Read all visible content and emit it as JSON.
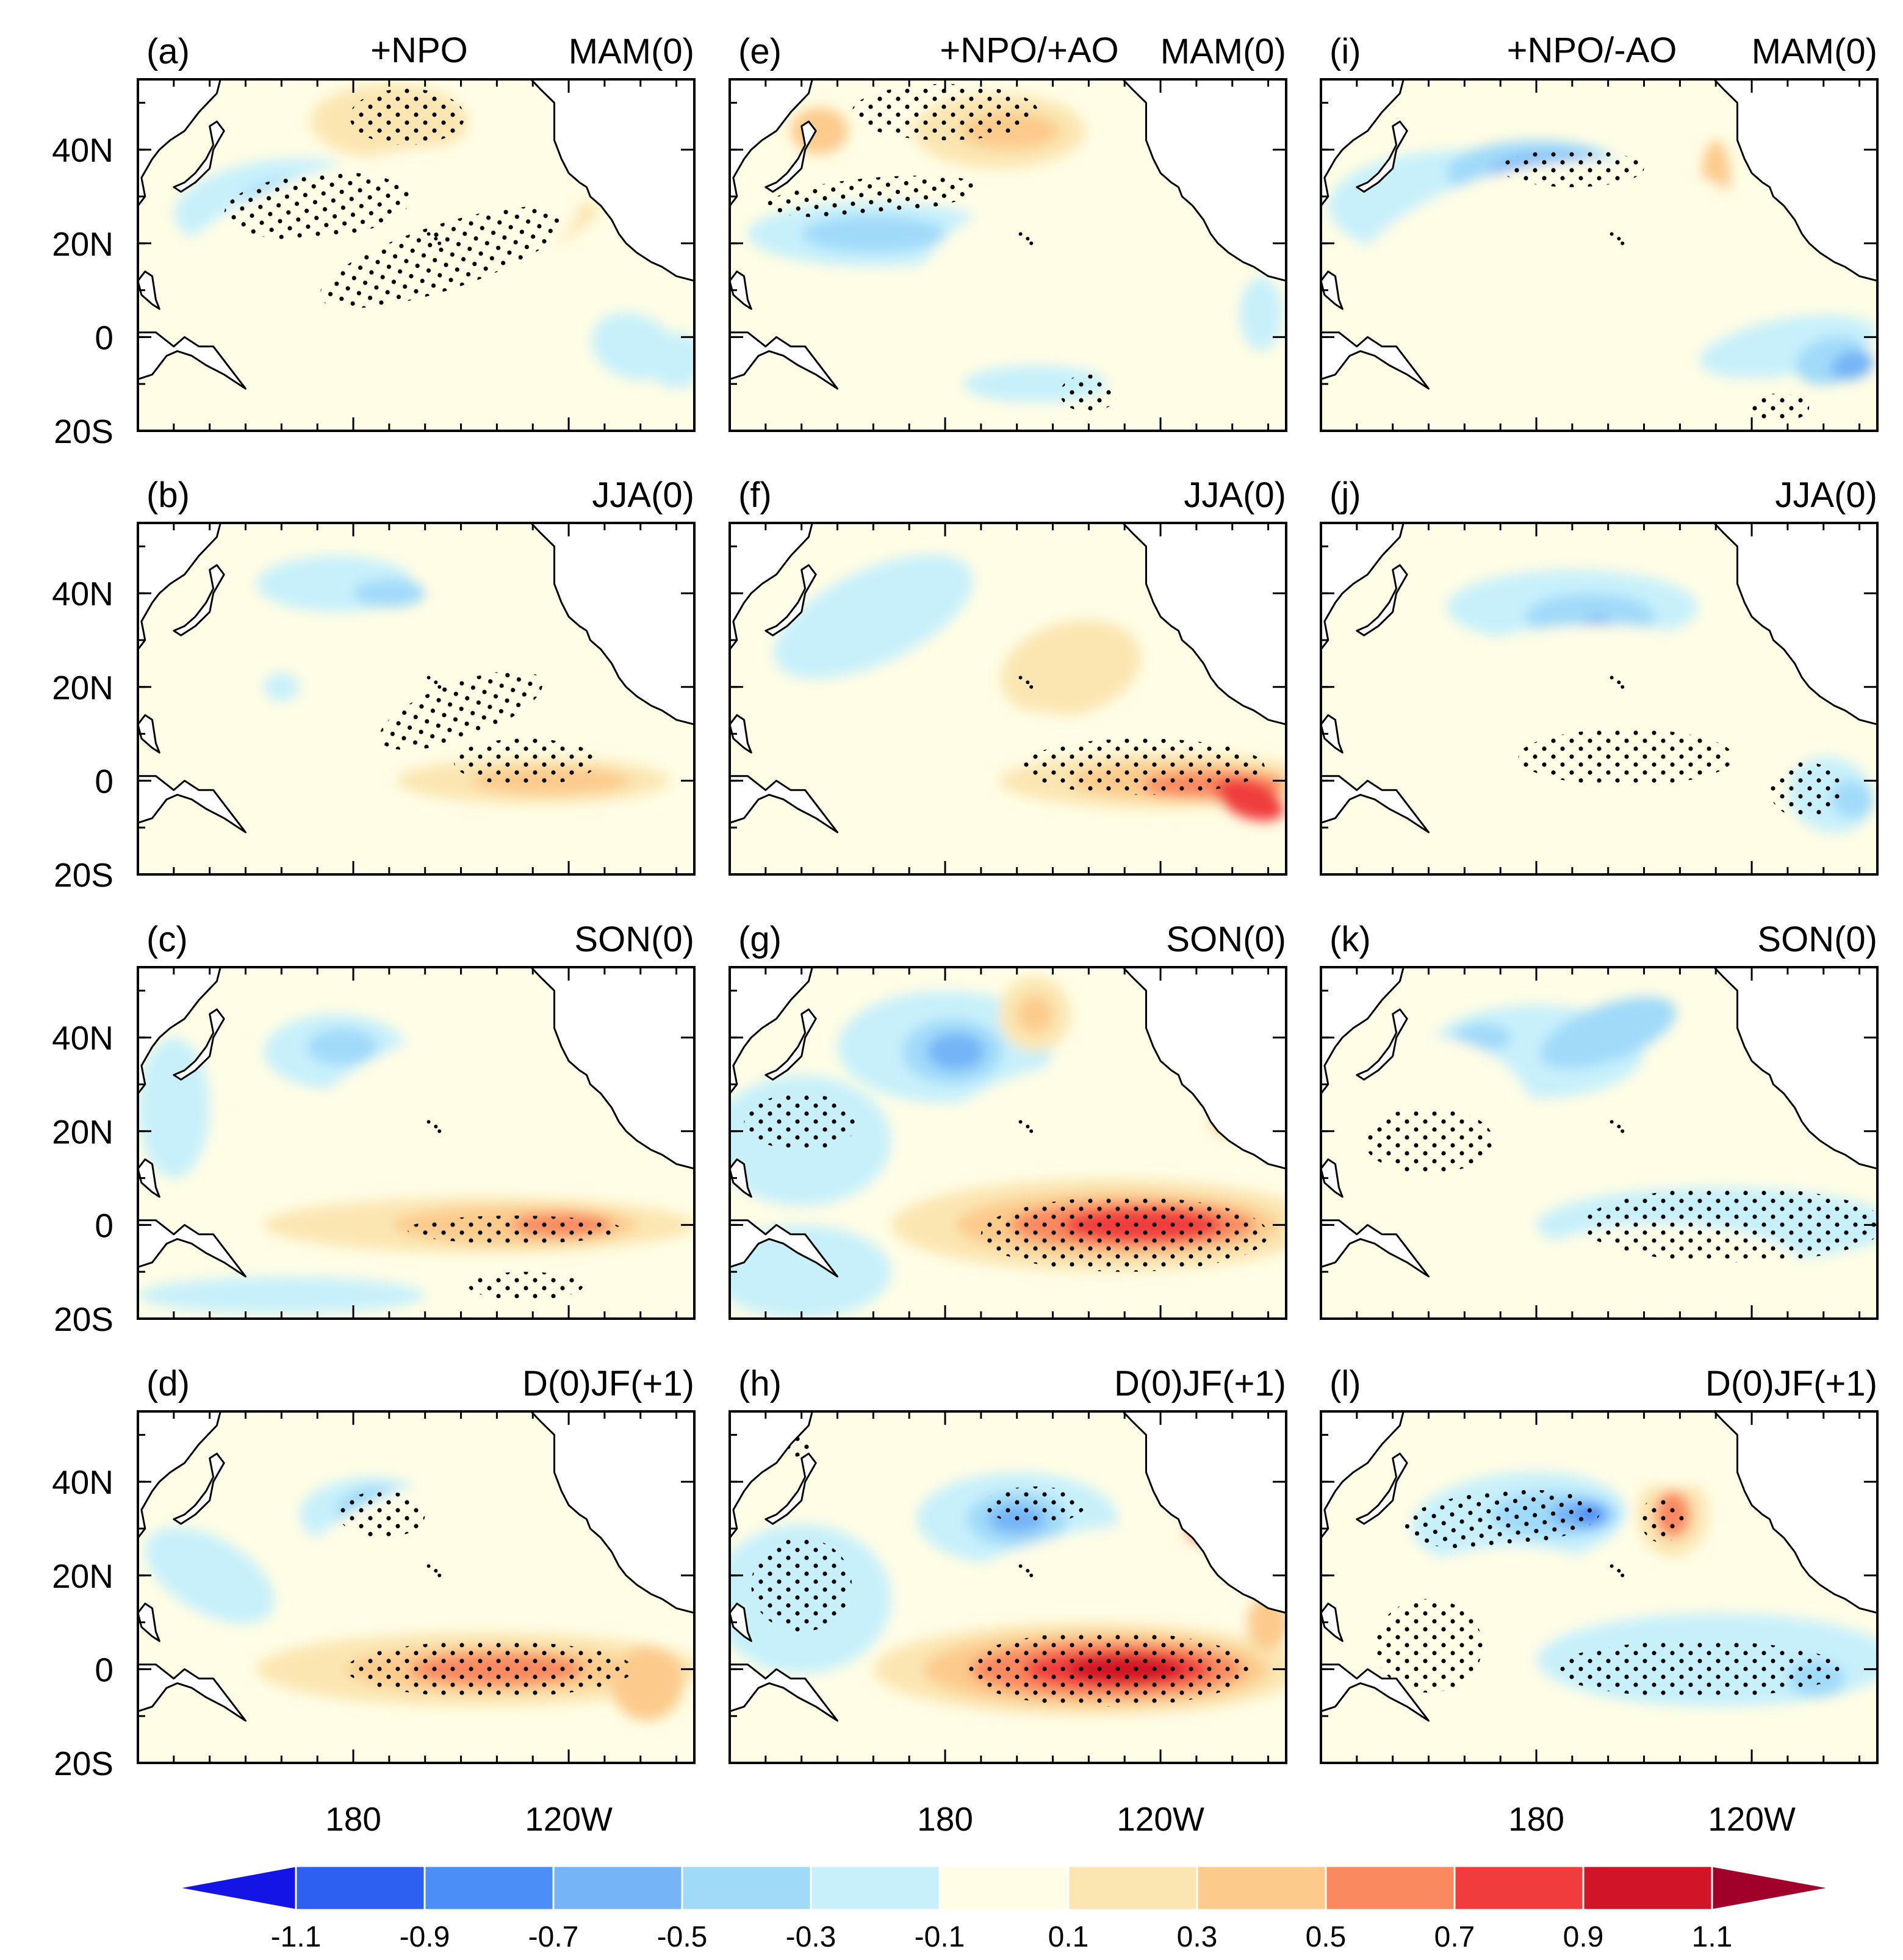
{
  "figure": {
    "map_extent": {
      "lon_min": 120,
      "lon_max": 275,
      "lat_min": -20,
      "lat_max": 55
    },
    "columns": [
      {
        "title": "+NPO"
      },
      {
        "title": "+NPO/+AO"
      },
      {
        "title": "+NPO/-AO"
      }
    ],
    "seasons": [
      "MAM(0)",
      "JJA(0)",
      "SON(0)",
      "D(0)JF(+1)"
    ],
    "panels": [
      {
        "label": "(a)",
        "season": "MAM(0)"
      },
      {
        "label": "(b)",
        "season": "JJA(0)"
      },
      {
        "label": "(c)",
        "season": "SON(0)"
      },
      {
        "label": "(d)",
        "season": "D(0)JF(+1)"
      },
      {
        "label": "(e)",
        "season": "MAM(0)"
      },
      {
        "label": "(f)",
        "season": "JJA(0)"
      },
      {
        "label": "(g)",
        "season": "SON(0)"
      },
      {
        "label": "(h)",
        "season": "D(0)JF(+1)"
      },
      {
        "label": "(i)",
        "season": "MAM(0)"
      },
      {
        "label": "(j)",
        "season": "JJA(0)"
      },
      {
        "label": "(k)",
        "season": "SON(0)"
      },
      {
        "label": "(l)",
        "season": "D(0)JF(+1)"
      }
    ],
    "y_axis": {
      "labels": [
        "40N",
        "20N",
        "0",
        "20S"
      ],
      "values": [
        40,
        20,
        0,
        -20
      ]
    },
    "x_axis": {
      "labels": [
        "180",
        "120W"
      ],
      "values": [
        180,
        240
      ]
    },
    "colorbar": {
      "tick_labels": [
        "-1.1",
        "-0.9",
        "-0.7",
        "-0.5",
        "-0.3",
        "-0.1",
        "0.1",
        "0.3",
        "0.5",
        "0.7",
        "0.9",
        "1.1"
      ],
      "colors": [
        "#1414e6",
        "#2d5ff0",
        "#4c8ef7",
        "#74b4f7",
        "#a0daf9",
        "#c8f0fb",
        "#fffde5",
        "#fbe6b2",
        "#fccb8c",
        "#fb8960",
        "#f03c3c",
        "#d21428",
        "#a0002a"
      ]
    },
    "colors": {
      "land": "#ffffff",
      "coast": "#000000",
      "frame": "#000000",
      "stipple": "#000000"
    }
  }
}
